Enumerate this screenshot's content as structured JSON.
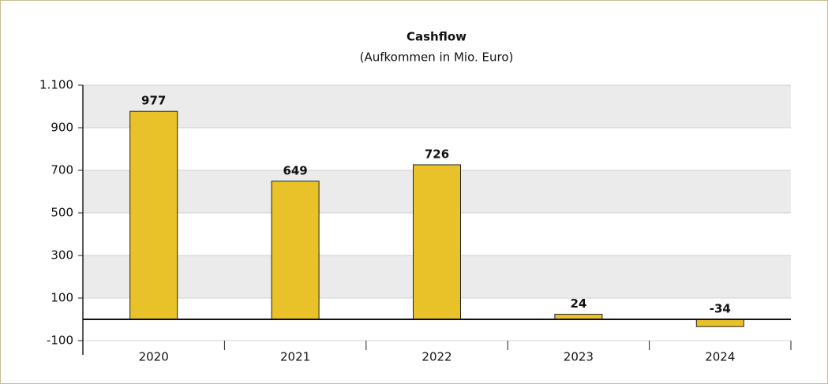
{
  "chart_data": {
    "type": "bar",
    "title": "Cashflow",
    "subtitle": "(Aufkommen in Mio. Euro)",
    "categories": [
      "2020",
      "2021",
      "2022",
      "2023",
      "2024"
    ],
    "values": [
      977,
      649,
      726,
      24,
      -34
    ],
    "color": "#e9c22a",
    "ylim": [
      -100,
      1100
    ],
    "yticks": [
      -100,
      100,
      300,
      500,
      700,
      900,
      {
        "value": 1100,
        "label": "1.100"
      }
    ],
    "grid": true
  }
}
